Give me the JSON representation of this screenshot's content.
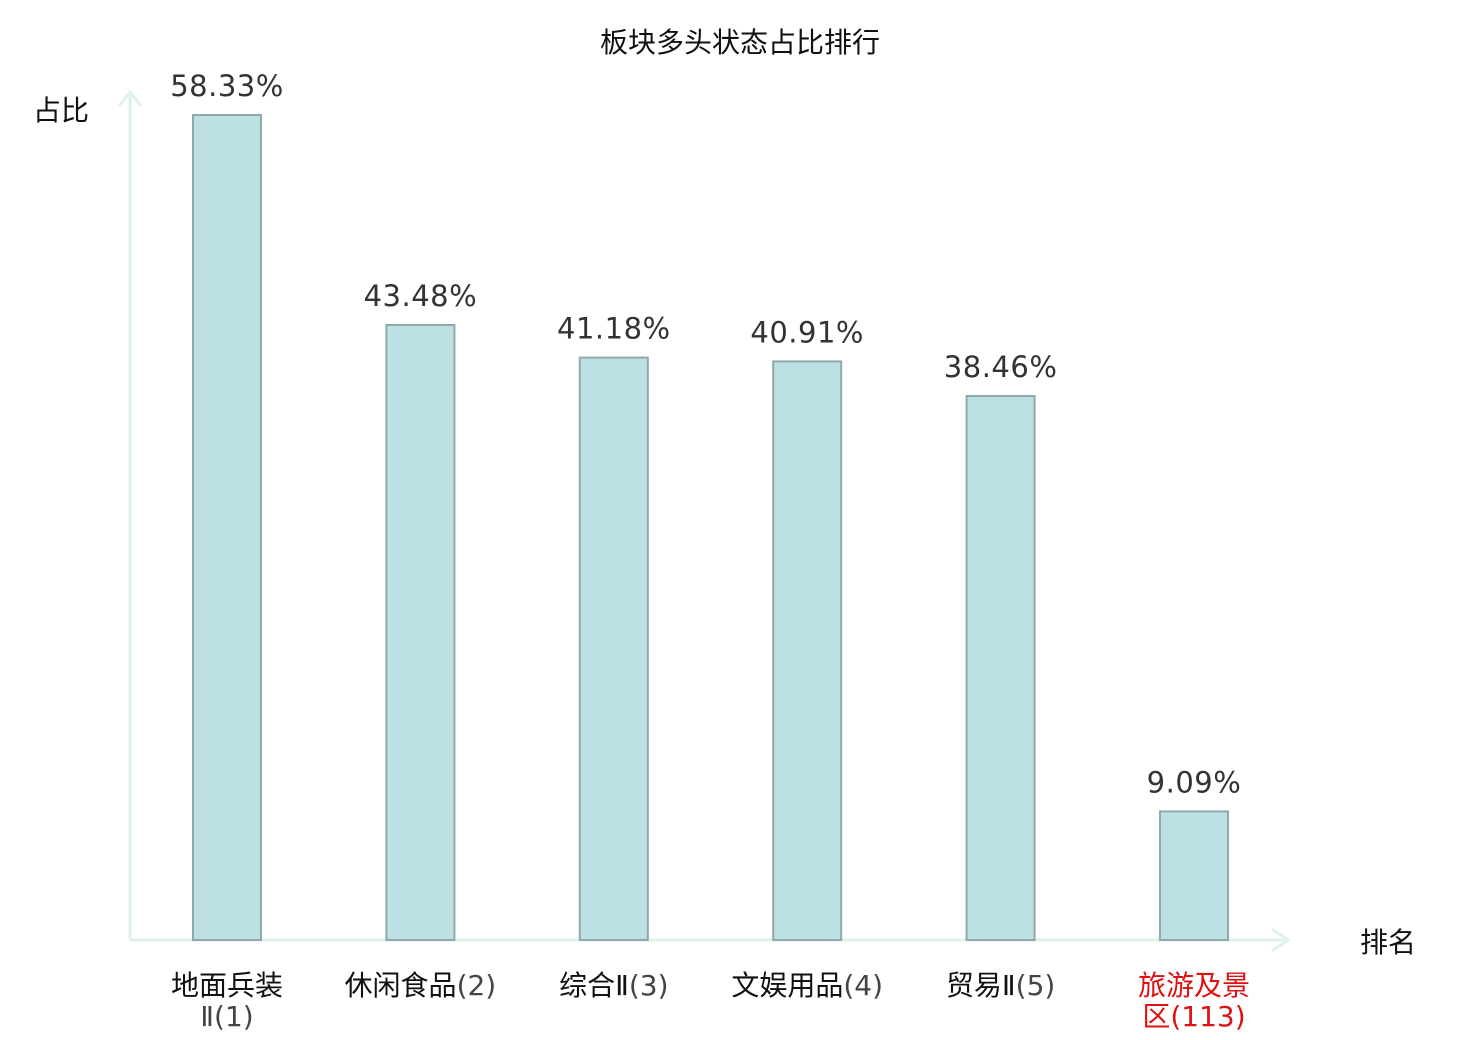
{
  "chart_data": {
    "type": "bar",
    "title": "板块多头状态占比排行",
    "ylabel": "占比",
    "xlabel": "排名",
    "ylim": [
      0,
      60
    ],
    "grid": false,
    "legend": "none",
    "categories": [
      {
        "name": "地面兵装Ⅱ",
        "rank": "(1)",
        "highlight": false
      },
      {
        "name": "休闲食品",
        "rank": "(2)",
        "highlight": false
      },
      {
        "name": "综合Ⅱ",
        "rank": "(3)",
        "highlight": false
      },
      {
        "name": "文娱用品",
        "rank": "(4)",
        "highlight": false
      },
      {
        "name": "贸易Ⅱ",
        "rank": "(5)",
        "highlight": false
      },
      {
        "name": "旅游及景区",
        "rank": "(113)",
        "highlight": true
      }
    ],
    "values": [
      58.33,
      43.48,
      41.18,
      40.91,
      38.46,
      9.09
    ],
    "value_labels": [
      "58.33%",
      "43.48%",
      "41.18%",
      "40.91%",
      "38.46%",
      "9.09%"
    ],
    "colors": {
      "bar_fill": "#bce0e3",
      "bar_stroke": "#8fa9ab",
      "axis": "#dff1ef",
      "highlight": "#dd1111",
      "normal_text": "#111111",
      "rank_text": "#444444"
    }
  }
}
